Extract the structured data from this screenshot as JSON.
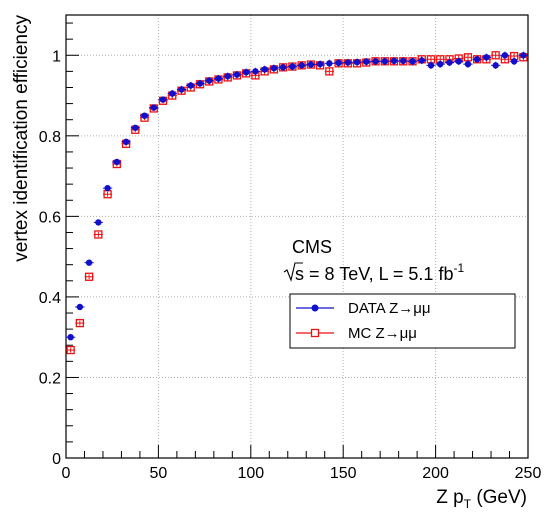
{
  "chart_data": {
    "type": "scatter",
    "title": "",
    "xlabel": "Z p",
    "xlabel_sub": "T",
    "xlabel_unit": " (GeV)",
    "ylabel": "vertex identification efficiency",
    "xlim": [
      0,
      250
    ],
    "ylim": [
      0,
      1.1
    ],
    "x_ticks": [
      0,
      50,
      100,
      150,
      200,
      250
    ],
    "y_ticks": [
      0,
      0.2,
      0.4,
      0.6,
      0.8,
      1
    ],
    "x_tick_labels": [
      "0",
      "50",
      "100",
      "150",
      "200",
      "250"
    ],
    "y_tick_labels": [
      "0",
      "0.2",
      "0.4",
      "0.6",
      "0.8",
      "1"
    ],
    "grid": true,
    "legend_position": "center-right",
    "annotation": {
      "experiment": "CMS",
      "sqrt": "s",
      "energy": " = 8 TeV, L = 5.1 fb",
      "lumi_exp": "-1"
    },
    "series": [
      {
        "name": "DATA Z→μμ",
        "color": "#1010cc",
        "marker": "filled-circle",
        "x": [
          2.5,
          7.5,
          12.5,
          17.5,
          22.5,
          27.5,
          32.5,
          37.5,
          42.5,
          47.5,
          52.5,
          57.5,
          62.5,
          67.5,
          72.5,
          77.5,
          82.5,
          87.5,
          92.5,
          97.5,
          102.5,
          107.5,
          112.5,
          117.5,
          122.5,
          127.5,
          132.5,
          137.5,
          142.5,
          147.5,
          152.5,
          157.5,
          162.5,
          167.5,
          172.5,
          177.5,
          182.5,
          187.5,
          192.5,
          197.5,
          202.5,
          207.5,
          212.5,
          217.5,
          222.5,
          227.5,
          232.5,
          237.5,
          242.5,
          247.5
        ],
        "y": [
          0.3,
          0.375,
          0.485,
          0.585,
          0.67,
          0.735,
          0.785,
          0.82,
          0.85,
          0.87,
          0.89,
          0.905,
          0.915,
          0.925,
          0.93,
          0.937,
          0.942,
          0.948,
          0.952,
          0.958,
          0.96,
          0.965,
          0.968,
          0.97,
          0.972,
          0.975,
          0.977,
          0.978,
          0.98,
          0.981,
          0.982,
          0.983,
          0.984,
          0.985,
          0.985,
          0.986,
          0.986,
          0.985,
          0.987,
          0.975,
          0.978,
          0.982,
          0.985,
          0.978,
          0.99,
          0.995,
          0.975,
          1.0,
          0.985,
          1.0
        ]
      },
      {
        "name": "MC Z→μμ",
        "color": "#ee1111",
        "marker": "open-square",
        "x": [
          2.5,
          7.5,
          12.5,
          17.5,
          22.5,
          27.5,
          32.5,
          37.5,
          42.5,
          47.5,
          52.5,
          57.5,
          62.5,
          67.5,
          72.5,
          77.5,
          82.5,
          87.5,
          92.5,
          97.5,
          102.5,
          107.5,
          112.5,
          117.5,
          122.5,
          127.5,
          132.5,
          137.5,
          142.5,
          147.5,
          152.5,
          157.5,
          162.5,
          167.5,
          172.5,
          177.5,
          182.5,
          187.5,
          192.5,
          197.5,
          202.5,
          207.5,
          212.5,
          217.5,
          222.5,
          227.5,
          232.5,
          237.5,
          242.5,
          247.5
        ],
        "y": [
          0.268,
          0.335,
          0.45,
          0.555,
          0.655,
          0.73,
          0.78,
          0.815,
          0.845,
          0.868,
          0.887,
          0.9,
          0.912,
          0.92,
          0.928,
          0.935,
          0.94,
          0.945,
          0.95,
          0.955,
          0.95,
          0.96,
          0.965,
          0.97,
          0.972,
          0.975,
          0.977,
          0.975,
          0.96,
          0.98,
          0.98,
          0.98,
          0.982,
          0.985,
          0.985,
          0.985,
          0.985,
          0.985,
          0.99,
          0.99,
          0.99,
          0.99,
          0.992,
          0.995,
          0.99,
          0.99,
          1.0,
          0.99,
          0.998,
          0.995
        ]
      }
    ]
  }
}
